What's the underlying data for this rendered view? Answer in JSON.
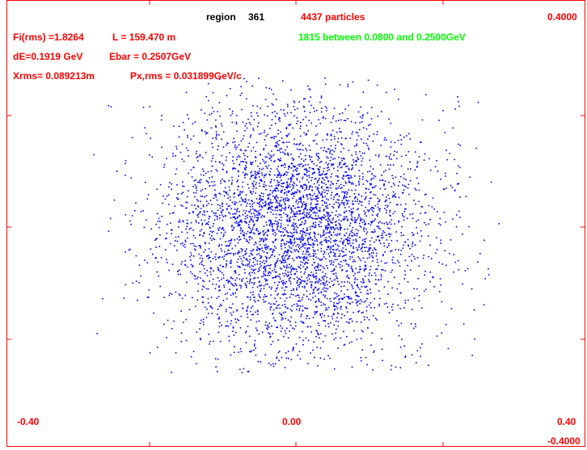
{
  "header": {
    "region_label": "region",
    "region_number": "361",
    "particles": "4437 particles",
    "ymax_label": "0.4000",
    "fi_rms": "Fi(rms) =1.8264",
    "length": "L = 159.470 m",
    "between": "1815 between 0.0800 and 0.2500GeV",
    "de": "dE=0.1919 GeV",
    "ebar": "Ebar =  0.2507GeV",
    "xrms": "Xrms= 0.089213m",
    "pxrms": "Px,rms = 0.031899GeV/c"
  },
  "axis": {
    "x_left": "-0.40",
    "x_mid": "0.00",
    "x_right": "0.40",
    "y_min": "-0.4000"
  },
  "colors": {
    "frame": "#ff0000",
    "points": "#0000ff",
    "header_black": "#000000",
    "header_green": "#00ff00"
  },
  "chart_data": {
    "type": "scatter",
    "xlim": [
      -0.4,
      0.4
    ],
    "ylim": [
      -0.4,
      0.4
    ],
    "n_points_shown": 4437,
    "x_rms": 0.089213,
    "y_rms": 0.031899,
    "grid": false,
    "legend": "none"
  }
}
